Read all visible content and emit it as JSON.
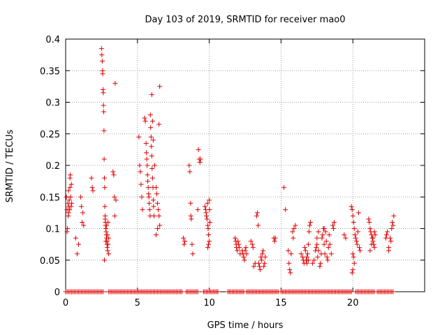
{
  "chart_data": {
    "type": "scatter",
    "title": "Day 103 of 2019, SRMTID for receiver mao0",
    "xlabel": "GPS time / hours",
    "ylabel": "SRMTID / TECUs",
    "xlim": [
      0,
      25
    ],
    "ylim": [
      0,
      0.4
    ],
    "xticks": [
      0,
      5,
      10,
      15,
      20
    ],
    "xtick_labels": [
      "0",
      "5",
      "10",
      "15",
      "20"
    ],
    "yticks": [
      0,
      0.05,
      0.1,
      0.15,
      0.2,
      0.25,
      0.3,
      0.35,
      0.4
    ],
    "ytick_labels": [
      "0",
      "0.05",
      "0.1",
      "0.15",
      "0.2",
      "0.25",
      "0.3",
      "0.35",
      "0.4"
    ],
    "grid": true,
    "marker": "+",
    "color": "#e00000",
    "series": [
      {
        "name": "SRMTID",
        "points": [
          [
            0.05,
            0.15
          ],
          [
            0.1,
            0.13
          ],
          [
            0.12,
            0.1
          ],
          [
            0.15,
            0.14
          ],
          [
            0.18,
            0.12
          ],
          [
            0.2,
            0.16
          ],
          [
            0.22,
            0.135
          ],
          [
            0.25,
            0.145
          ],
          [
            0.28,
            0.13
          ],
          [
            0.3,
            0.18
          ],
          [
            0.32,
            0.185
          ],
          [
            0.35,
            0.15
          ],
          [
            0.38,
            0.135
          ],
          [
            0.4,
            0.17
          ],
          [
            0.42,
            0.14
          ],
          [
            0.1,
            0.095
          ],
          [
            0.2,
            0.125
          ],
          [
            0.3,
            0.165
          ],
          [
            0.7,
            0.085
          ],
          [
            0.8,
            0.06
          ],
          [
            0.9,
            0.075
          ],
          [
            1.05,
            0.15
          ],
          [
            1.1,
            0.135
          ],
          [
            1.15,
            0.11
          ],
          [
            1.2,
            0.125
          ],
          [
            1.25,
            0.105
          ],
          [
            1.8,
            0.18
          ],
          [
            1.85,
            0.165
          ],
          [
            1.9,
            0.16
          ],
          [
            2.5,
            0.385
          ],
          [
            2.52,
            0.375
          ],
          [
            2.55,
            0.365
          ],
          [
            2.57,
            0.35
          ],
          [
            2.58,
            0.345
          ],
          [
            2.6,
            0.32
          ],
          [
            2.62,
            0.315
          ],
          [
            2.63,
            0.295
          ],
          [
            2.65,
            0.285
          ],
          [
            2.67,
            0.255
          ],
          [
            2.68,
            0.21
          ],
          [
            2.7,
            0.18
          ],
          [
            2.72,
            0.165
          ],
          [
            2.73,
            0.135
          ],
          [
            2.75,
            0.115
          ],
          [
            2.77,
            0.11
          ],
          [
            2.78,
            0.105
          ],
          [
            2.8,
            0.1
          ],
          [
            2.82,
            0.095
          ],
          [
            2.83,
            0.09
          ],
          [
            2.85,
            0.085
          ],
          [
            2.87,
            0.08
          ],
          [
            2.88,
            0.075
          ],
          [
            2.9,
            0.07
          ],
          [
            2.92,
            0.065
          ],
          [
            2.7,
            0.05
          ],
          [
            2.75,
            0.12
          ],
          [
            2.8,
            0.08
          ],
          [
            2.85,
            0.105
          ],
          [
            2.9,
            0.09
          ],
          [
            2.95,
            0.11
          ],
          [
            3.0,
            0.085
          ],
          [
            2.95,
            0.075
          ],
          [
            3.0,
            0.06
          ],
          [
            3.3,
            0.19
          ],
          [
            3.35,
            0.185
          ],
          [
            3.4,
            0.15
          ],
          [
            3.42,
            0.12
          ],
          [
            3.45,
            0.33
          ],
          [
            3.5,
            0.145
          ],
          [
            5.1,
            0.245
          ],
          [
            5.15,
            0.2
          ],
          [
            5.2,
            0.19
          ],
          [
            5.25,
            0.17
          ],
          [
            5.3,
            0.15
          ],
          [
            5.35,
            0.13
          ],
          [
            5.5,
            0.275
          ],
          [
            5.55,
            0.27
          ],
          [
            5.6,
            0.235
          ],
          [
            5.62,
            0.22
          ],
          [
            5.65,
            0.21
          ],
          [
            5.68,
            0.2
          ],
          [
            5.7,
            0.185
          ],
          [
            5.72,
            0.175
          ],
          [
            5.75,
            0.165
          ],
          [
            5.78,
            0.155
          ],
          [
            5.8,
            0.15
          ],
          [
            5.82,
            0.14
          ],
          [
            5.85,
            0.13
          ],
          [
            5.88,
            0.12
          ],
          [
            5.9,
            0.28
          ],
          [
            5.92,
            0.26
          ],
          [
            5.95,
            0.245
          ],
          [
            5.97,
            0.23
          ],
          [
            6.0,
            0.215
          ],
          [
            6.02,
            0.195
          ],
          [
            6.05,
            0.18
          ],
          [
            6.08,
            0.165
          ],
          [
            6.1,
            0.145
          ],
          [
            6.12,
            0.135
          ],
          [
            6.15,
            0.12
          ],
          [
            6.0,
            0.312
          ],
          [
            6.05,
            0.27
          ],
          [
            6.1,
            0.24
          ],
          [
            6.2,
            0.2
          ],
          [
            6.3,
            0.165
          ],
          [
            6.35,
            0.155
          ],
          [
            6.4,
            0.14
          ],
          [
            6.45,
            0.13
          ],
          [
            6.5,
            0.12
          ],
          [
            6.55,
            0.105
          ],
          [
            6.4,
            0.1
          ],
          [
            6.3,
            0.09
          ],
          [
            6.5,
            0.265
          ],
          [
            6.55,
            0.325
          ],
          [
            8.2,
            0.085
          ],
          [
            8.25,
            0.075
          ],
          [
            8.3,
            0.08
          ],
          [
            8.6,
            0.2
          ],
          [
            8.65,
            0.19
          ],
          [
            8.7,
            0.14
          ],
          [
            8.72,
            0.12
          ],
          [
            8.75,
            0.115
          ],
          [
            8.8,
            0.075
          ],
          [
            8.85,
            0.06
          ],
          [
            9.2,
            0.13
          ],
          [
            9.25,
            0.225
          ],
          [
            9.3,
            0.21
          ],
          [
            9.35,
            0.205
          ],
          [
            9.4,
            0.21
          ],
          [
            9.7,
            0.135
          ],
          [
            9.75,
            0.13
          ],
          [
            9.78,
            0.125
          ],
          [
            9.8,
            0.12
          ],
          [
            9.85,
            0.115
          ],
          [
            9.88,
            0.14
          ],
          [
            9.9,
            0.105
          ],
          [
            9.92,
            0.1
          ],
          [
            9.95,
            0.09
          ],
          [
            10.0,
            0.145
          ],
          [
            10.02,
            0.13
          ],
          [
            10.05,
            0.11
          ],
          [
            10.0,
            0.08
          ],
          [
            9.95,
            0.075
          ],
          [
            9.9,
            0.07
          ],
          [
            11.8,
            0.085
          ],
          [
            11.85,
            0.08
          ],
          [
            11.88,
            0.075
          ],
          [
            11.9,
            0.07
          ],
          [
            11.95,
            0.065
          ],
          [
            12.0,
            0.08
          ],
          [
            12.05,
            0.075
          ],
          [
            12.1,
            0.07
          ],
          [
            12.15,
            0.06
          ],
          [
            12.3,
            0.065
          ],
          [
            12.35,
            0.06
          ],
          [
            12.4,
            0.055
          ],
          [
            12.45,
            0.05
          ],
          [
            12.5,
            0.065
          ],
          [
            12.55,
            0.07
          ],
          [
            12.6,
            0.06
          ],
          [
            12.9,
            0.08
          ],
          [
            13.0,
            0.075
          ],
          [
            13.05,
            0.07
          ],
          [
            13.1,
            0.04
          ],
          [
            13.2,
            0.045
          ],
          [
            13.3,
            0.12
          ],
          [
            13.35,
            0.125
          ],
          [
            13.4,
            0.105
          ],
          [
            13.45,
            0.045
          ],
          [
            13.5,
            0.04
          ],
          [
            13.55,
            0.035
          ],
          [
            13.6,
            0.055
          ],
          [
            13.65,
            0.05
          ],
          [
            13.7,
            0.06
          ],
          [
            13.75,
            0.065
          ],
          [
            13.8,
            0.04
          ],
          [
            13.85,
            0.045
          ],
          [
            13.9,
            0.055
          ],
          [
            14.5,
            0.085
          ],
          [
            14.55,
            0.08
          ],
          [
            14.6,
            0.085
          ],
          [
            15.2,
            0.165
          ],
          [
            15.3,
            0.13
          ],
          [
            15.5,
            0.065
          ],
          [
            15.55,
            0.045
          ],
          [
            15.6,
            0.035
          ],
          [
            15.65,
            0.03
          ],
          [
            15.7,
            0.06
          ],
          [
            15.8,
            0.095
          ],
          [
            15.9,
            0.1
          ],
          [
            16.0,
            0.105
          ],
          [
            15.85,
            0.085
          ],
          [
            16.4,
            0.06
          ],
          [
            16.5,
            0.055
          ],
          [
            16.55,
            0.05
          ],
          [
            16.6,
            0.045
          ],
          [
            16.65,
            0.07
          ],
          [
            16.7,
            0.065
          ],
          [
            16.75,
            0.05
          ],
          [
            16.8,
            0.055
          ],
          [
            16.85,
            0.06
          ],
          [
            16.9,
            0.075
          ],
          [
            16.95,
            0.095
          ],
          [
            17.0,
            0.105
          ],
          [
            17.05,
            0.11
          ],
          [
            16.8,
            0.045
          ],
          [
            16.9,
            0.05
          ],
          [
            17.2,
            0.045
          ],
          [
            17.3,
            0.05
          ],
          [
            17.4,
            0.065
          ],
          [
            17.45,
            0.07
          ],
          [
            17.5,
            0.075
          ],
          [
            17.55,
            0.055
          ],
          [
            17.6,
            0.065
          ],
          [
            17.7,
            0.04
          ],
          [
            17.75,
            0.045
          ],
          [
            17.8,
            0.06
          ],
          [
            17.85,
            0.085
          ],
          [
            17.9,
            0.09
          ],
          [
            17.95,
            0.1
          ],
          [
            18.0,
            0.075
          ],
          [
            18.05,
            0.06
          ],
          [
            18.1,
            0.095
          ],
          [
            18.15,
            0.08
          ],
          [
            18.2,
            0.055
          ],
          [
            18.25,
            0.05
          ],
          [
            18.3,
            0.07
          ],
          [
            18.35,
            0.09
          ],
          [
            18.4,
            0.075
          ],
          [
            18.5,
            0.06
          ],
          [
            17.5,
            0.085
          ],
          [
            17.6,
            0.095
          ],
          [
            18.0,
            0.1
          ],
          [
            18.6,
            0.105
          ],
          [
            18.65,
            0.1
          ],
          [
            18.7,
            0.11
          ],
          [
            19.4,
            0.09
          ],
          [
            19.5,
            0.085
          ],
          [
            19.9,
            0.135
          ],
          [
            19.95,
            0.13
          ],
          [
            20.0,
            0.12
          ],
          [
            20.05,
            0.11
          ],
          [
            20.1,
            0.1
          ],
          [
            20.15,
            0.09
          ],
          [
            20.2,
            0.085
          ],
          [
            20.25,
            0.08
          ],
          [
            20.3,
            0.075
          ],
          [
            20.35,
            0.095
          ],
          [
            20.4,
            0.125
          ],
          [
            20.45,
            0.07
          ],
          [
            20.5,
            0.065
          ],
          [
            20.0,
            0.06
          ],
          [
            20.05,
            0.055
          ],
          [
            20.1,
            0.045
          ],
          [
            20.0,
            0.035
          ],
          [
            19.95,
            0.03
          ],
          [
            21.1,
            0.115
          ],
          [
            21.15,
            0.11
          ],
          [
            21.2,
            0.1
          ],
          [
            21.25,
            0.095
          ],
          [
            21.3,
            0.09
          ],
          [
            21.35,
            0.085
          ],
          [
            21.4,
            0.08
          ],
          [
            21.45,
            0.075
          ],
          [
            21.5,
            0.07
          ],
          [
            21.2,
            0.065
          ],
          [
            21.3,
            0.075
          ],
          [
            21.4,
            0.085
          ],
          [
            21.5,
            0.095
          ],
          [
            21.55,
            0.09
          ],
          [
            22.3,
            0.085
          ],
          [
            22.35,
            0.09
          ],
          [
            22.4,
            0.095
          ],
          [
            22.5,
            0.07
          ],
          [
            22.6,
            0.085
          ],
          [
            22.65,
            0.08
          ],
          [
            22.7,
            0.1
          ],
          [
            22.75,
            0.11
          ],
          [
            22.8,
            0.105
          ],
          [
            22.85,
            0.12
          ],
          [
            22.5,
            0.065
          ]
        ]
      }
    ],
    "zero_runs": [
      [
        0.0,
        2.6
      ],
      [
        3.0,
        8.1
      ],
      [
        8.4,
        9.2
      ],
      [
        9.6,
        10.6
      ],
      [
        11.3,
        12.4
      ],
      [
        12.6,
        14.8
      ],
      [
        15.0,
        19.9
      ],
      [
        20.2,
        21.5
      ],
      [
        21.7,
        22.8
      ]
    ],
    "zero_step": 0.1
  }
}
